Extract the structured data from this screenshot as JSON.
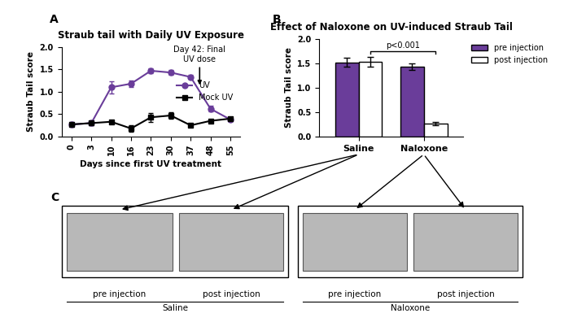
{
  "chart_data": [
    {
      "type": "line",
      "panel": "A",
      "title": "Straub tail with Daily UV Exposure",
      "x_label": "Days since first UV treatment",
      "y_label": "Straub Tail score",
      "categories": [
        "0",
        "3",
        "10",
        "16",
        "23",
        "30",
        "37",
        "48",
        "55"
      ],
      "series": [
        {
          "name": "UV",
          "color": "#6a3d9a",
          "marker": "circle",
          "line_style": "solid",
          "values": [
            0.27,
            0.3,
            1.1,
            1.18,
            1.47,
            1.43,
            1.33,
            0.62,
            0.38
          ],
          "errors": [
            0.05,
            0.04,
            0.13,
            0.08,
            0.05,
            0.05,
            0.04,
            0.06,
            0.04
          ]
        },
        {
          "name": "Mock UV",
          "color": "#000000",
          "marker": "square",
          "line_style": "solid",
          "values": [
            0.27,
            0.3,
            0.33,
            0.18,
            0.43,
            0.47,
            0.25,
            0.35,
            0.4
          ],
          "errors": [
            0.04,
            0.04,
            0.04,
            0.08,
            0.1,
            0.07,
            0.04,
            0.03,
            0.03
          ]
        }
      ],
      "annotations": [
        {
          "text": "Day 42: Final\nUV dose",
          "x": 42
        }
      ],
      "ylim": [
        0,
        2.0
      ],
      "yticks": [
        {
          "value": 0,
          "label": "0.0"
        },
        {
          "value": 0.5,
          "label": "0.5"
        },
        {
          "value": 1.0,
          "label": "1.0"
        },
        {
          "value": 1.5,
          "label": "1.5"
        },
        {
          "value": 2.0,
          "label": "2.0"
        }
      ],
      "legend": "center right",
      "grid": false
    },
    {
      "type": "bar",
      "panel": "B",
      "title": "Effect of Naloxone on UV-induced Straub Tail",
      "y_label": "Straub Tail score",
      "categories": [
        "Saline",
        "Naloxone"
      ],
      "series": [
        {
          "name": "pre injection",
          "color": "#6a3d9a",
          "values": [
            1.52,
            1.43
          ],
          "errors": [
            0.09,
            0.07
          ]
        },
        {
          "name": "post injection",
          "color": "#ffffff",
          "values": [
            1.53,
            0.27
          ],
          "errors": [
            0.1,
            0.03
          ]
        }
      ],
      "annotations": [
        {
          "text": "p<0.001",
          "from": "Saline",
          "to": "Naloxone",
          "series": "post injection"
        }
      ],
      "ylim": [
        0,
        2.0
      ],
      "yticks": [
        {
          "value": 0,
          "label": "0.0"
        },
        {
          "value": 0.5,
          "label": "0.5"
        },
        {
          "value": 1.0,
          "label": "1.0"
        },
        {
          "value": 1.5,
          "label": "1.5"
        },
        {
          "value": 2.0,
          "label": "2.0"
        }
      ],
      "legend": "upper right",
      "grid": false
    }
  ],
  "photos": {
    "panel": "C",
    "groups": [
      {
        "name": "Saline",
        "images": [
          "pre injection",
          "post injection"
        ]
      },
      {
        "name": "Naloxone",
        "images": [
          "pre injection",
          "post injection"
        ]
      }
    ]
  }
}
